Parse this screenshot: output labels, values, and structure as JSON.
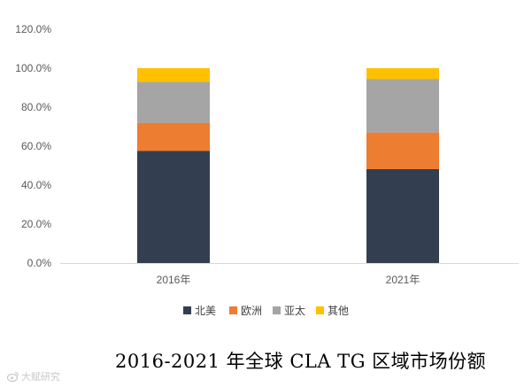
{
  "chart_data": {
    "type": "bar",
    "stacked": true,
    "title": "2016-2021 年全球 CLA TG 区域市场份额",
    "categories": [
      "2016年",
      "2021年"
    ],
    "series": [
      {
        "name": "北美",
        "color": "#333f50",
        "values": [
          57.5,
          48.2
        ]
      },
      {
        "name": "欧洲",
        "color": "#ed7d31",
        "values": [
          14.5,
          18.8
        ]
      },
      {
        "name": "亚太",
        "color": "#a5a5a5",
        "values": [
          21.0,
          27.5
        ]
      },
      {
        "name": "其他",
        "color": "#ffc000",
        "values": [
          7.0,
          5.5
        ]
      }
    ],
    "yticks": [
      "0.0%",
      "20.0%",
      "40.0%",
      "60.0%",
      "80.0%",
      "100.0%",
      "120.0%"
    ],
    "ylim": [
      0,
      120
    ],
    "grid": false,
    "legend_position": "bottom"
  },
  "watermark": {
    "text": "大赋研究",
    "icon": "weibo-icon"
  }
}
